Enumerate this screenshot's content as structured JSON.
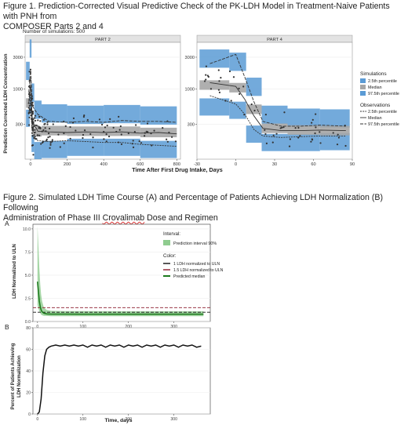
{
  "figure1": {
    "caption_line1": "Figure 1. Prediction-Corrected Visual Predictive Check of the PK-LDH Model in Treatment-Naive Patients with PNH from",
    "caption_line2": "COMPOSER Parts 2 and 4",
    "sim_note": "Number of simulations: 500",
    "ylabel": "Prediction Corrected LDH Concentration",
    "xlabel": "Time After First Drug Intake, Days",
    "legend": {
      "sim_title": "Simulations",
      "sim_items": [
        "2.5th percentile",
        "Median",
        "97.5th percentile"
      ],
      "obs_title": "Observations",
      "obs_items": [
        "2.5th percentile",
        "Median",
        "97.5th percentile"
      ]
    },
    "colors": {
      "band_outer": "#5b9bd5",
      "band_median": "#a6a6a6",
      "strip": "#e3e3e3",
      "points": "#333333"
    }
  },
  "figure2": {
    "caption_line1": "Figure 2. Simulated LDH Time Course (A) and Percentage of Patients Achieving LDH Normalization (B) Following",
    "caption_line2_a": "Administration of Phase III ",
    "caption_line2_b": "Crovalimab",
    "caption_line2_c": " Dose and Regimen",
    "panelA_letter": "A",
    "panelB_letter": "B",
    "panelA_ylabel": "LDH Normalized to ULN",
    "panelB_ylabel_1": "Percent of Patients Achieving",
    "panelB_ylabel_2": "LDH Normalization",
    "panelB_xlabel": "Time, days",
    "legend": {
      "interval_title": "Interval:",
      "interval_item": "Prediction interval 90%",
      "color_title": "Color:",
      "color_items": [
        "1 LDH normalized to ULN",
        "1.5 LDH normalized to ULN",
        "Predicted median"
      ]
    },
    "colors": {
      "median": "#1e7b1e",
      "interval": "#8fcc8f",
      "ref1": "#111111",
      "ref15": "#8b1a2b",
      "panel_b_line": "#111111"
    }
  },
  "chart_data": [
    {
      "type": "scatter",
      "panel": "PART 2",
      "xlabel": "Time After First Drug Intake, Days",
      "ylabel": "Prediction Corrected LDH Concentration",
      "xlim": [
        -30,
        820
      ],
      "x_ticks": [
        0,
        200,
        400,
        600,
        800
      ],
      "y_ticks": [
        300,
        1000,
        3000
      ],
      "y_scale": "log",
      "bins": [
        {
          "x0": -25,
          "x1": -5,
          "p2_5": 380,
          "median": 620,
          "p97_5": 1900
        },
        {
          "x0": -5,
          "x1": 5,
          "p2_5": 600,
          "median": 1300,
          "p97_5": 4100
        },
        {
          "x0": 5,
          "x1": 20,
          "p2_5": 160,
          "median": 320,
          "p97_5": 900
        },
        {
          "x0": 20,
          "x1": 60,
          "p2_5": 125,
          "median": 230,
          "p97_5": 500
        },
        {
          "x0": 60,
          "x1": 200,
          "p2_5": 130,
          "median": 240,
          "p97_5": 440
        },
        {
          "x0": 200,
          "x1": 400,
          "p2_5": 140,
          "median": 235,
          "p97_5": 420
        },
        {
          "x0": 400,
          "x1": 600,
          "p2_5": 140,
          "median": 235,
          "p97_5": 430
        },
        {
          "x0": 600,
          "x1": 800,
          "p2_5": 130,
          "median": 225,
          "p97_5": 410
        }
      ],
      "obs_median": [
        [
          -10,
          620
        ],
        [
          0,
          1150
        ],
        [
          10,
          330
        ],
        [
          40,
          235
        ],
        [
          100,
          230
        ],
        [
          200,
          225
        ],
        [
          300,
          230
        ],
        [
          400,
          225
        ],
        [
          500,
          230
        ],
        [
          600,
          220
        ],
        [
          700,
          225
        ],
        [
          800,
          215
        ]
      ],
      "obs_p2_5": [
        [
          -10,
          420
        ],
        [
          0,
          700
        ],
        [
          10,
          200
        ],
        [
          40,
          170
        ],
        [
          100,
          165
        ],
        [
          200,
          170
        ],
        [
          300,
          165
        ],
        [
          400,
          160
        ],
        [
          500,
          160
        ],
        [
          600,
          150
        ],
        [
          700,
          145
        ],
        [
          800,
          140
        ]
      ],
      "obs_p97_5": [
        [
          -10,
          900
        ],
        [
          0,
          2000
        ],
        [
          10,
          560
        ],
        [
          40,
          420
        ],
        [
          100,
          330
        ],
        [
          200,
          320
        ],
        [
          300,
          330
        ],
        [
          400,
          320
        ],
        [
          500,
          340
        ],
        [
          600,
          330
        ],
        [
          700,
          330
        ],
        [
          800,
          320
        ]
      ]
    },
    {
      "type": "scatter",
      "panel": "PART 4",
      "xlabel": "Time After First Drug Intake, Days",
      "xlim": [
        -30,
        90
      ],
      "x_ticks": [
        -30,
        0,
        30,
        60,
        90
      ],
      "y_ticks": [
        300,
        1000,
        3000
      ],
      "y_scale": "log",
      "bins": [
        {
          "x0": -28,
          "x1": -5,
          "p2_5": 560,
          "median": 1150,
          "p97_5": 2900
        },
        {
          "x0": -5,
          "x1": 8,
          "p2_5": 500,
          "median": 1050,
          "p97_5": 2600
        },
        {
          "x0": 8,
          "x1": 20,
          "p2_5": 220,
          "median": 500,
          "p97_5": 1100
        },
        {
          "x0": 20,
          "x1": 40,
          "p2_5": 165,
          "median": 260,
          "p97_5": 420
        },
        {
          "x0": 40,
          "x1": 65,
          "p2_5": 165,
          "median": 245,
          "p97_5": 380
        },
        {
          "x0": 65,
          "x1": 88,
          "p2_5": 170,
          "median": 240,
          "p97_5": 370
        }
      ],
      "obs_median": [
        [
          -20,
          1250
        ],
        [
          0,
          1100
        ],
        [
          7,
          700
        ],
        [
          14,
          400
        ],
        [
          21,
          260
        ],
        [
          35,
          240
        ],
        [
          50,
          240
        ],
        [
          65,
          245
        ],
        [
          85,
          240
        ]
      ],
      "obs_p2_5": [
        [
          -20,
          800
        ],
        [
          0,
          600
        ],
        [
          7,
          420
        ],
        [
          14,
          250
        ],
        [
          21,
          200
        ],
        [
          35,
          190
        ],
        [
          50,
          195
        ],
        [
          65,
          200
        ],
        [
          85,
          200
        ]
      ],
      "obs_p97_5": [
        [
          -20,
          2400
        ],
        [
          0,
          3300
        ],
        [
          7,
          1500
        ],
        [
          14,
          650
        ],
        [
          21,
          330
        ],
        [
          35,
          280
        ],
        [
          50,
          280
        ],
        [
          65,
          290
        ],
        [
          85,
          280
        ]
      ]
    },
    {
      "type": "area",
      "panel": "A",
      "ylabel": "LDH Normalized to ULN",
      "ylim": [
        0,
        10.5
      ],
      "y_ticks": [
        0.0,
        2.5,
        5.0,
        7.5,
        10.0
      ],
      "x_ticks": [
        0,
        100,
        200,
        300
      ],
      "xlim": [
        -10,
        380
      ],
      "median": [
        [
          0,
          4.3
        ],
        [
          2,
          3.2
        ],
        [
          4,
          2.2
        ],
        [
          6,
          1.6
        ],
        [
          8,
          1.25
        ],
        [
          10,
          1.05
        ],
        [
          14,
          0.9
        ],
        [
          20,
          0.82
        ],
        [
          30,
          0.8
        ],
        [
          60,
          0.8
        ],
        [
          100,
          0.79
        ],
        [
          200,
          0.79
        ],
        [
          300,
          0.79
        ],
        [
          365,
          0.79
        ]
      ],
      "pi_upper": [
        [
          0,
          10.3
        ],
        [
          2,
          8.0
        ],
        [
          4,
          5.8
        ],
        [
          6,
          4.0
        ],
        [
          8,
          2.9
        ],
        [
          10,
          2.2
        ],
        [
          14,
          1.5
        ],
        [
          20,
          1.25
        ],
        [
          30,
          1.15
        ],
        [
          60,
          1.12
        ],
        [
          100,
          1.12
        ],
        [
          200,
          1.1
        ],
        [
          300,
          1.1
        ],
        [
          365,
          1.1
        ]
      ],
      "pi_lower": [
        [
          0,
          1.8
        ],
        [
          2,
          1.4
        ],
        [
          4,
          1.1
        ],
        [
          6,
          0.9
        ],
        [
          8,
          0.75
        ],
        [
          10,
          0.68
        ],
        [
          14,
          0.62
        ],
        [
          20,
          0.6
        ],
        [
          30,
          0.58
        ],
        [
          60,
          0.58
        ],
        [
          100,
          0.58
        ],
        [
          200,
          0.58
        ],
        [
          300,
          0.58
        ],
        [
          365,
          0.58
        ]
      ],
      "ref_lines": [
        1.0,
        1.5
      ]
    },
    {
      "type": "line",
      "panel": "B",
      "xlabel": "Time, days",
      "ylabel": "Percent of Patients Achieving LDH Normalization",
      "xlim": [
        -10,
        380
      ],
      "ylim": [
        0,
        80
      ],
      "y_ticks": [
        0,
        20,
        40,
        60,
        80
      ],
      "x_ticks": [
        0,
        100,
        200,
        300
      ],
      "x": [
        0,
        4,
        8,
        12,
        16,
        20,
        25,
        30,
        40,
        50,
        60,
        70,
        80,
        90,
        100,
        110,
        120,
        130,
        140,
        150,
        160,
        170,
        180,
        190,
        200,
        210,
        220,
        230,
        240,
        250,
        260,
        270,
        280,
        290,
        300,
        310,
        320,
        330,
        340,
        350,
        360
      ],
      "values": [
        0,
        2,
        14,
        38,
        54,
        60,
        62,
        63,
        64,
        63,
        64,
        63,
        64,
        63,
        64,
        62,
        64,
        63,
        64,
        62,
        64,
        63,
        64,
        62,
        64,
        63,
        64,
        62,
        64,
        63,
        64,
        62,
        64,
        63,
        64,
        62,
        64,
        63,
        64,
        62,
        63
      ]
    }
  ]
}
